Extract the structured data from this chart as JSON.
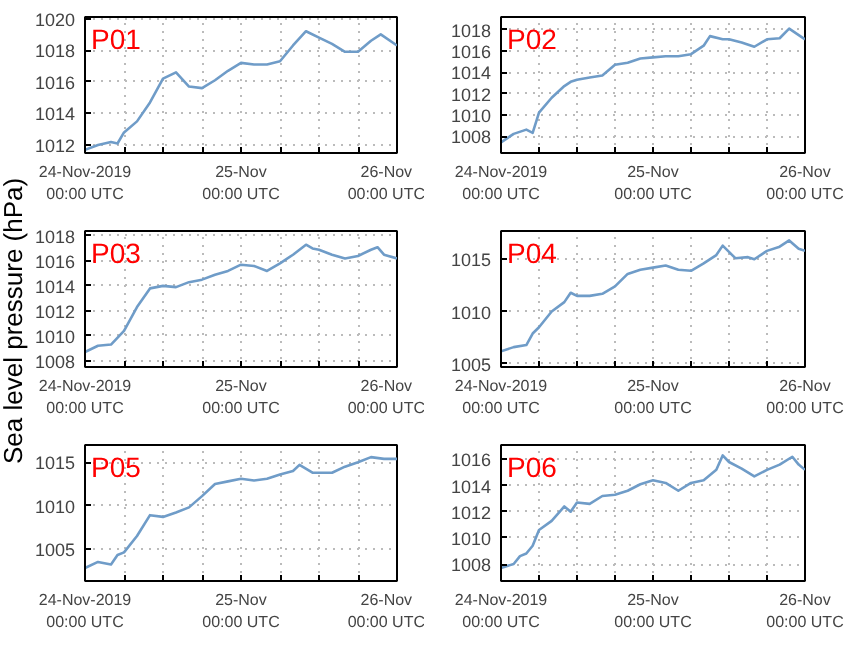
{
  "chart_data": [
    {
      "type": "line",
      "title": "P01",
      "xlim": [
        "2019-11-24T00:00",
        "2019-11-26T00:00"
      ],
      "ylim": [
        1011.5,
        1020.1
      ],
      "yticks": [
        1012,
        1014,
        1016,
        1018,
        1020
      ],
      "grid": true,
      "xticks": [
        {
          "value": "2019-11-24T00:00",
          "label": "24-Nov-2019\n00:00 UTC"
        },
        {
          "value": "2019-11-24T06:00",
          "label": null
        },
        {
          "value": "2019-11-24T12:00",
          "label": null
        },
        {
          "value": "2019-11-24T18:00",
          "label": null
        },
        {
          "value": "2019-11-25T00:00",
          "label": "25-Nov\n00:00 UTC"
        },
        {
          "value": "2019-11-25T06:00",
          "label": null
        },
        {
          "value": "2019-11-25T12:00",
          "label": null
        },
        {
          "value": "2019-11-25T18:00",
          "label": null
        },
        {
          "value": "2019-11-26T00:00",
          "label": "26-Nov\n00:00 UTC"
        }
      ],
      "series": [
        {
          "color": "#6f9cc8",
          "x": [
            "2019-11-24T00:00",
            "2019-11-24T02:00",
            "2019-11-24T04:00",
            "2019-11-24T05:00",
            "2019-11-24T06:00",
            "2019-11-24T08:00",
            "2019-11-24T10:00",
            "2019-11-24T12:00",
            "2019-11-24T14:00",
            "2019-11-24T16:00",
            "2019-11-24T18:00",
            "2019-11-24T20:00",
            "2019-11-24T22:00",
            "2019-11-25T00:00",
            "2019-11-25T02:00",
            "2019-11-25T04:00",
            "2019-11-25T06:00",
            "2019-11-25T08:00",
            "2019-11-25T10:00",
            "2019-11-25T12:00",
            "2019-11-25T14:00",
            "2019-11-25T16:00",
            "2019-11-25T18:00",
            "2019-11-25T20:00",
            "2019-11-25T21:30",
            "2019-11-26T00:00"
          ],
          "values": [
            1011.7,
            1012.0,
            1012.2,
            1012.1,
            1012.8,
            1013.5,
            1014.7,
            1016.2,
            1016.6,
            1015.7,
            1015.6,
            1016.1,
            1016.7,
            1017.2,
            1017.1,
            1017.1,
            1017.3,
            1018.3,
            1019.2,
            1018.8,
            1018.4,
            1017.9,
            1017.9,
            1018.6,
            1019.0,
            1018.3
          ]
        }
      ]
    },
    {
      "type": "line",
      "title": "P02",
      "xlim": [
        "2019-11-24T00:00",
        "2019-11-26T00:00"
      ],
      "ylim": [
        1006.4,
        1019.2
      ],
      "yticks": [
        1008,
        1010,
        1012,
        1014,
        1016,
        1018
      ],
      "grid": true,
      "xticks": [
        {
          "value": "2019-11-24T00:00",
          "label": "24-Nov-2019\n00:00 UTC"
        },
        {
          "value": "2019-11-24T06:00",
          "label": null
        },
        {
          "value": "2019-11-24T12:00",
          "label": null
        },
        {
          "value": "2019-11-24T18:00",
          "label": null
        },
        {
          "value": "2019-11-25T00:00",
          "label": "25-Nov\n00:00 UTC"
        },
        {
          "value": "2019-11-25T06:00",
          "label": null
        },
        {
          "value": "2019-11-25T12:00",
          "label": null
        },
        {
          "value": "2019-11-25T18:00",
          "label": null
        },
        {
          "value": "2019-11-26T00:00",
          "label": "26-Nov\n00:00 UTC"
        }
      ],
      "series": [
        {
          "color": "#6f9cc8",
          "x": [
            "2019-11-24T00:00",
            "2019-11-24T02:00",
            "2019-11-24T04:00",
            "2019-11-24T05:00",
            "2019-11-24T06:00",
            "2019-11-24T08:00",
            "2019-11-24T10:00",
            "2019-11-24T11:00",
            "2019-11-24T12:00",
            "2019-11-24T14:00",
            "2019-11-24T16:00",
            "2019-11-24T18:00",
            "2019-11-24T20:00",
            "2019-11-24T22:00",
            "2019-11-25T00:00",
            "2019-11-25T02:00",
            "2019-11-25T04:00",
            "2019-11-25T06:00",
            "2019-11-25T08:00",
            "2019-11-25T09:00",
            "2019-11-25T11:00",
            "2019-11-25T12:00",
            "2019-11-25T14:00",
            "2019-11-25T16:00",
            "2019-11-25T18:00",
            "2019-11-25T20:00",
            "2019-11-25T21:30",
            "2019-11-26T00:00"
          ],
          "values": [
            1007.4,
            1008.2,
            1008.6,
            1008.3,
            1010.2,
            1011.6,
            1012.7,
            1013.1,
            1013.3,
            1013.5,
            1013.7,
            1014.7,
            1014.9,
            1015.3,
            1015.4,
            1015.5,
            1015.5,
            1015.7,
            1016.5,
            1017.4,
            1017.1,
            1017.1,
            1016.8,
            1016.4,
            1017.1,
            1017.2,
            1018.1,
            1017.1
          ]
        }
      ]
    },
    {
      "type": "line",
      "title": "P03",
      "ylabel": "Sea level pressure (hPa)",
      "xlim": [
        "2019-11-24T00:00",
        "2019-11-26T00:00"
      ],
      "ylim": [
        1007.5,
        1018.4
      ],
      "yticks": [
        1008,
        1010,
        1012,
        1014,
        1016,
        1018
      ],
      "grid": true,
      "xticks": [
        {
          "value": "2019-11-24T00:00",
          "label": "24-Nov-2019\n00:00 UTC"
        },
        {
          "value": "2019-11-24T06:00",
          "label": null
        },
        {
          "value": "2019-11-24T12:00",
          "label": null
        },
        {
          "value": "2019-11-24T18:00",
          "label": null
        },
        {
          "value": "2019-11-25T00:00",
          "label": "25-Nov\n00:00 UTC"
        },
        {
          "value": "2019-11-25T06:00",
          "label": null
        },
        {
          "value": "2019-11-25T12:00",
          "label": null
        },
        {
          "value": "2019-11-25T18:00",
          "label": null
        },
        {
          "value": "2019-11-26T00:00",
          "label": "26-Nov\n00:00 UTC"
        }
      ],
      "series": [
        {
          "color": "#6f9cc8",
          "x": [
            "2019-11-24T00:00",
            "2019-11-24T02:00",
            "2019-11-24T04:00",
            "2019-11-24T06:00",
            "2019-11-24T08:00",
            "2019-11-24T10:00",
            "2019-11-24T11:00",
            "2019-11-24T12:00",
            "2019-11-24T14:00",
            "2019-11-24T16:00",
            "2019-11-24T18:00",
            "2019-11-24T20:00",
            "2019-11-24T22:00",
            "2019-11-25T00:00",
            "2019-11-25T02:00",
            "2019-11-25T04:00",
            "2019-11-25T06:00",
            "2019-11-25T08:00",
            "2019-11-25T10:00",
            "2019-11-25T11:00",
            "2019-11-25T12:00",
            "2019-11-25T14:00",
            "2019-11-25T16:00",
            "2019-11-25T18:00",
            "2019-11-25T20:00",
            "2019-11-25T21:00",
            "2019-11-25T22:00",
            "2019-11-26T00:00"
          ],
          "values": [
            1008.7,
            1009.2,
            1009.3,
            1010.4,
            1012.3,
            1013.8,
            1013.9,
            1014.0,
            1013.9,
            1014.3,
            1014.5,
            1014.9,
            1015.2,
            1015.7,
            1015.6,
            1015.2,
            1015.8,
            1016.5,
            1017.3,
            1017.0,
            1016.9,
            1016.5,
            1016.2,
            1016.4,
            1016.9,
            1017.1,
            1016.5,
            1016.2
          ]
        }
      ]
    },
    {
      "type": "line",
      "title": "P04",
      "xlim": [
        "2019-11-24T00:00",
        "2019-11-26T00:00"
      ],
      "ylim": [
        1004.7,
        1017.7
      ],
      "yticks": [
        1005,
        1010,
        1015
      ],
      "grid": true,
      "xticks": [
        {
          "value": "2019-11-24T00:00",
          "label": "24-Nov-2019\n00:00 UTC"
        },
        {
          "value": "2019-11-24T06:00",
          "label": null
        },
        {
          "value": "2019-11-24T12:00",
          "label": null
        },
        {
          "value": "2019-11-24T18:00",
          "label": null
        },
        {
          "value": "2019-11-25T00:00",
          "label": "25-Nov\n00:00 UTC"
        },
        {
          "value": "2019-11-25T06:00",
          "label": null
        },
        {
          "value": "2019-11-25T12:00",
          "label": null
        },
        {
          "value": "2019-11-25T18:00",
          "label": null
        },
        {
          "value": "2019-11-26T00:00",
          "label": "26-Nov\n00:00 UTC"
        }
      ],
      "series": [
        {
          "color": "#6f9cc8",
          "x": [
            "2019-11-24T00:00",
            "2019-11-24T02:00",
            "2019-11-24T04:00",
            "2019-11-24T05:00",
            "2019-11-24T06:00",
            "2019-11-24T08:00",
            "2019-11-24T10:00",
            "2019-11-24T11:00",
            "2019-11-24T12:00",
            "2019-11-24T14:00",
            "2019-11-24T16:00",
            "2019-11-24T18:00",
            "2019-11-24T20:00",
            "2019-11-24T22:00",
            "2019-11-25T00:00",
            "2019-11-25T02:00",
            "2019-11-25T04:00",
            "2019-11-25T06:00",
            "2019-11-25T08:00",
            "2019-11-25T10:00",
            "2019-11-25T11:00",
            "2019-11-25T12:00",
            "2019-11-25T13:00",
            "2019-11-25T15:00",
            "2019-11-25T16:00",
            "2019-11-25T18:00",
            "2019-11-25T20:00",
            "2019-11-25T21:30",
            "2019-11-25T23:00",
            "2019-11-26T00:00"
          ],
          "values": [
            1006.2,
            1006.6,
            1006.8,
            1007.9,
            1008.5,
            1010.0,
            1010.9,
            1011.8,
            1011.5,
            1011.5,
            1011.7,
            1012.4,
            1013.6,
            1014.0,
            1014.2,
            1014.4,
            1014.0,
            1013.9,
            1014.6,
            1015.4,
            1016.3,
            1015.7,
            1015.1,
            1015.2,
            1015.0,
            1015.8,
            1016.2,
            1016.8,
            1016.0,
            1015.8
          ]
        }
      ]
    },
    {
      "type": "line",
      "title": "P05",
      "xlim": [
        "2019-11-24T00:00",
        "2019-11-26T00:00"
      ],
      "ylim": [
        1001.3,
        1017.0
      ],
      "yticks": [
        1005,
        1010,
        1015
      ],
      "grid": true,
      "xticks": [
        {
          "value": "2019-11-24T00:00",
          "label": "24-Nov-2019\n00:00 UTC"
        },
        {
          "value": "2019-11-24T06:00",
          "label": null
        },
        {
          "value": "2019-11-24T12:00",
          "label": null
        },
        {
          "value": "2019-11-24T18:00",
          "label": null
        },
        {
          "value": "2019-11-25T00:00",
          "label": "25-Nov\n00:00 UTC"
        },
        {
          "value": "2019-11-25T06:00",
          "label": null
        },
        {
          "value": "2019-11-25T12:00",
          "label": null
        },
        {
          "value": "2019-11-25T18:00",
          "label": null
        },
        {
          "value": "2019-11-26T00:00",
          "label": "26-Nov\n00:00 UTC"
        }
      ],
      "series": [
        {
          "color": "#6f9cc8",
          "x": [
            "2019-11-24T00:00",
            "2019-11-24T02:00",
            "2019-11-24T04:00",
            "2019-11-24T05:00",
            "2019-11-24T06:00",
            "2019-11-24T08:00",
            "2019-11-24T10:00",
            "2019-11-24T12:00",
            "2019-11-24T14:00",
            "2019-11-24T16:00",
            "2019-11-24T18:00",
            "2019-11-24T20:00",
            "2019-11-24T22:00",
            "2019-11-25T00:00",
            "2019-11-25T02:00",
            "2019-11-25T04:00",
            "2019-11-25T06:00",
            "2019-11-25T08:00",
            "2019-11-25T09:00",
            "2019-11-25T11:00",
            "2019-11-25T12:00",
            "2019-11-25T14:00",
            "2019-11-25T16:00",
            "2019-11-25T18:00",
            "2019-11-25T20:00",
            "2019-11-25T22:00",
            "2019-11-26T00:00"
          ],
          "values": [
            1002.8,
            1003.5,
            1003.2,
            1004.3,
            1004.6,
            1006.5,
            1008.9,
            1008.7,
            1009.2,
            1009.8,
            1011.1,
            1012.5,
            1012.8,
            1013.1,
            1012.9,
            1013.1,
            1013.6,
            1014.0,
            1014.7,
            1013.8,
            1013.8,
            1013.8,
            1014.5,
            1015.0,
            1015.6,
            1015.4,
            1015.4
          ]
        }
      ]
    },
    {
      "type": "line",
      "title": "P06",
      "xlim": [
        "2019-11-24T00:00",
        "2019-11-26T00:00"
      ],
      "ylim": [
        1006.7,
        1017.1
      ],
      "yticks": [
        1008,
        1010,
        1012,
        1014,
        1016
      ],
      "grid": true,
      "xticks": [
        {
          "value": "2019-11-24T00:00",
          "label": "24-Nov-2019\n00:00 UTC"
        },
        {
          "value": "2019-11-24T06:00",
          "label": null
        },
        {
          "value": "2019-11-24T12:00",
          "label": null
        },
        {
          "value": "2019-11-24T18:00",
          "label": null
        },
        {
          "value": "2019-11-25T00:00",
          "label": "25-Nov\n00:00 UTC"
        },
        {
          "value": "2019-11-25T06:00",
          "label": null
        },
        {
          "value": "2019-11-25T12:00",
          "label": null
        },
        {
          "value": "2019-11-25T18:00",
          "label": null
        },
        {
          "value": "2019-11-26T00:00",
          "label": "26-Nov\n00:00 UTC"
        }
      ],
      "series": [
        {
          "color": "#6f9cc8",
          "x": [
            "2019-11-24T00:00",
            "2019-11-24T02:00",
            "2019-11-24T03:00",
            "2019-11-24T04:00",
            "2019-11-24T05:00",
            "2019-11-24T06:00",
            "2019-11-24T08:00",
            "2019-11-24T10:00",
            "2019-11-24T11:00",
            "2019-11-24T12:00",
            "2019-11-24T14:00",
            "2019-11-24T16:00",
            "2019-11-24T18:00",
            "2019-11-24T20:00",
            "2019-11-24T22:00",
            "2019-11-25T00:00",
            "2019-11-25T02:00",
            "2019-11-25T04:00",
            "2019-11-25T06:00",
            "2019-11-25T08:00",
            "2019-11-25T10:00",
            "2019-11-25T11:00",
            "2019-11-25T12:00",
            "2019-11-25T14:00",
            "2019-11-25T16:00",
            "2019-11-25T18:00",
            "2019-11-25T20:00",
            "2019-11-25T22:00",
            "2019-11-25T23:00",
            "2019-11-26T00:00"
          ],
          "values": [
            1007.7,
            1008.0,
            1008.6,
            1008.8,
            1009.4,
            1010.6,
            1011.3,
            1012.4,
            1012.0,
            1012.7,
            1012.6,
            1013.2,
            1013.3,
            1013.6,
            1014.1,
            1014.4,
            1014.2,
            1013.6,
            1014.2,
            1014.4,
            1015.2,
            1016.3,
            1015.8,
            1015.3,
            1014.7,
            1015.2,
            1015.6,
            1016.2,
            1015.6,
            1015.2
          ]
        }
      ]
    }
  ]
}
